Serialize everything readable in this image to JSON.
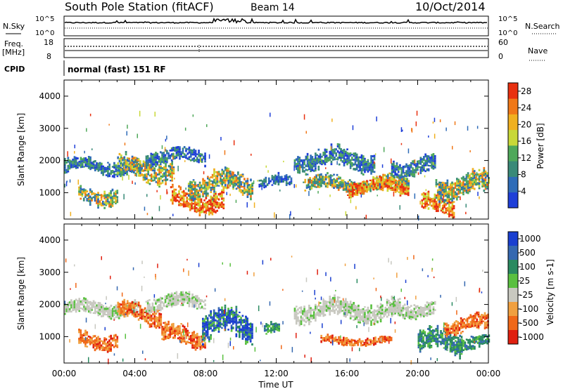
{
  "header": {
    "title": "South Pole Station (fitACF)",
    "beam": "Beam 14",
    "date": "10/Oct/2014"
  },
  "status_panels": {
    "noise": {
      "label_left": "N.Sky",
      "label_right": "N.Search",
      "ticks": [
        "10^5",
        "10^0"
      ],
      "ticks_right": [
        "10^5",
        "10^0"
      ]
    },
    "freq": {
      "label_left_1": "Freq.",
      "label_left_2": "[MHz]",
      "label_right": "Nave",
      "ticks": [
        "18",
        "8"
      ],
      "ticks_right": [
        "60",
        "0"
      ]
    },
    "cpid": {
      "label": "CPID",
      "text": "normal (fast) 151 RF"
    }
  },
  "chart_data": [
    {
      "type": "heatmap",
      "title": "",
      "ylabel": "Slant Range [km]",
      "xlabel": "",
      "ylim": [
        180,
        4500
      ],
      "xlim": [
        "00:00",
        "24:00"
      ],
      "yticks": [
        "1000",
        "2000",
        "3000",
        "4000"
      ],
      "colorbar": {
        "label": "Power [dB]",
        "ticks": [
          "4",
          "8",
          "12",
          "16",
          "20",
          "24",
          "28"
        ],
        "range": [
          0,
          30
        ],
        "colors": [
          "#1f3fd8",
          "#2f6cb8",
          "#3a8a78",
          "#4fa85a",
          "#c8d838",
          "#f0b020",
          "#f07818",
          "#e83010"
        ]
      },
      "echo_regions": [
        {
          "start_h": 0.0,
          "end_h": 4.2,
          "center_km": 1800,
          "width_km": 250,
          "level": "medium"
        },
        {
          "start_h": 0.8,
          "end_h": 3.0,
          "center_km": 900,
          "width_km": 300,
          "level": "medium-high"
        },
        {
          "start_h": 3.0,
          "end_h": 6.2,
          "center_km": 1700,
          "width_km": 400,
          "level": "medium-high"
        },
        {
          "start_h": 4.6,
          "end_h": 8.0,
          "center_km": 2100,
          "width_km": 250,
          "level": "medium"
        },
        {
          "start_h": 6.0,
          "end_h": 9.0,
          "center_km": 750,
          "width_km": 380,
          "level": "high"
        },
        {
          "start_h": 7.0,
          "end_h": 10.6,
          "center_km": 1250,
          "width_km": 400,
          "level": "medium-high"
        },
        {
          "start_h": 11.0,
          "end_h": 12.8,
          "center_km": 1300,
          "width_km": 200,
          "level": "low"
        },
        {
          "start_h": 13.0,
          "end_h": 17.5,
          "center_km": 2000,
          "width_km": 350,
          "level": "medium"
        },
        {
          "start_h": 13.5,
          "end_h": 19.5,
          "center_km": 1250,
          "width_km": 250,
          "level": "medium-high"
        },
        {
          "start_h": 16.0,
          "end_h": 19.5,
          "center_km": 1150,
          "width_km": 250,
          "level": "high"
        },
        {
          "start_h": 18.5,
          "end_h": 21.0,
          "center_km": 1800,
          "width_km": 300,
          "level": "medium"
        },
        {
          "start_h": 20.2,
          "end_h": 22.0,
          "center_km": 600,
          "width_km": 300,
          "level": "high"
        },
        {
          "start_h": 21.0,
          "end_h": 24.0,
          "center_km": 1200,
          "width_km": 400,
          "level": "medium-high"
        }
      ]
    },
    {
      "type": "heatmap",
      "title": "",
      "ylabel": "Slant Range [km]",
      "xlabel": "Time UT",
      "ylim": [
        180,
        4500
      ],
      "xlim": [
        "00:00",
        "24:00"
      ],
      "xticks": [
        "00:00",
        "04:00",
        "08:00",
        "12:00",
        "16:00",
        "20:00",
        "00:00"
      ],
      "yticks": [
        "1000",
        "2000",
        "3000",
        "4000"
      ],
      "colorbar": {
        "label": "Velocity [m s-1]",
        "ticks": [
          "1000",
          "500",
          "100",
          "25",
          "-25",
          "-100",
          "-500",
          "-1000"
        ],
        "colors": [
          "#1a3fd0",
          "#3568b0",
          "#2a8a60",
          "#5ac040",
          "#c8c8c0",
          "#f0a040",
          "#f06818",
          "#e02010"
        ]
      },
      "echo_regions": [
        {
          "start_h": 0.0,
          "end_h": 4.2,
          "center_km": 1850,
          "width_km": 250,
          "level": "ground"
        },
        {
          "start_h": 0.8,
          "end_h": 3.0,
          "center_km": 900,
          "width_km": 300,
          "level": "neg-med"
        },
        {
          "start_h": 3.0,
          "end_h": 5.5,
          "center_km": 1700,
          "width_km": 350,
          "level": "neg-med"
        },
        {
          "start_h": 4.6,
          "end_h": 8.0,
          "center_km": 2050,
          "width_km": 250,
          "level": "ground"
        },
        {
          "start_h": 5.5,
          "end_h": 8.0,
          "center_km": 1000,
          "width_km": 350,
          "level": "neg-med"
        },
        {
          "start_h": 7.8,
          "end_h": 10.6,
          "center_km": 1300,
          "width_km": 550,
          "level": "pos-high"
        },
        {
          "start_h": 11.3,
          "end_h": 12.2,
          "center_km": 1200,
          "width_km": 200,
          "level": "pos-low"
        },
        {
          "start_h": 13.0,
          "end_h": 19.0,
          "center_km": 1800,
          "width_km": 350,
          "level": "ground"
        },
        {
          "start_h": 14.5,
          "end_h": 18.5,
          "center_km": 850,
          "width_km": 150,
          "level": "neg-med"
        },
        {
          "start_h": 18.5,
          "end_h": 21.0,
          "center_km": 1850,
          "width_km": 250,
          "level": "ground"
        },
        {
          "start_h": 20.0,
          "end_h": 22.5,
          "center_km": 800,
          "width_km": 400,
          "level": "pos-low"
        },
        {
          "start_h": 22.0,
          "end_h": 24.0,
          "center_km": 800,
          "width_km": 250,
          "level": "pos-low"
        },
        {
          "start_h": 21.5,
          "end_h": 24.0,
          "center_km": 1350,
          "width_km": 300,
          "level": "neg-med"
        }
      ]
    }
  ]
}
